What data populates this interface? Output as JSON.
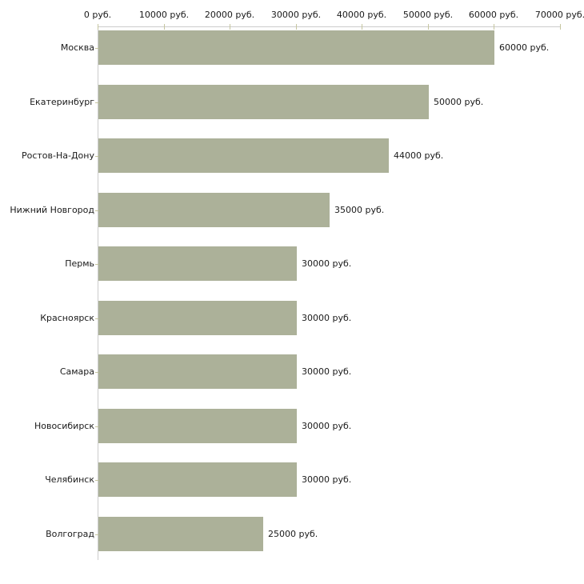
{
  "chart_data": {
    "type": "bar",
    "orientation": "horizontal",
    "title": "",
    "xlabel": "",
    "ylabel": "",
    "categories": [
      "Москва",
      "Екатеринбург",
      "Ростов-На-Дону",
      "Нижний Новгород",
      "Пермь",
      "Красноярск",
      "Самара",
      "Новосибирск",
      "Челябинск",
      "Волгоград"
    ],
    "values": [
      60000,
      50000,
      44000,
      35000,
      30000,
      30000,
      30000,
      30000,
      30000,
      25000
    ],
    "value_labels": [
      "60000 руб.",
      "50000 руб.",
      "44000 руб.",
      "35000 руб.",
      "30000 руб.",
      "30000 руб.",
      "30000 руб.",
      "30000 руб.",
      "30000 руб.",
      "25000 руб."
    ],
    "x_axis": {
      "min": 0,
      "max": 70000,
      "tick_values": [
        0,
        10000,
        20000,
        30000,
        40000,
        50000,
        60000,
        70000
      ],
      "tick_labels": [
        "0 руб.",
        "10000 руб.",
        "20000 руб.",
        "30000 руб.",
        "40000 руб.",
        "50000 руб.",
        "60000 руб.",
        "70000 руб."
      ]
    },
    "grid": false,
    "legend": false,
    "colors": {
      "bar": "#acb199",
      "axis": "#cccccc",
      "tick": "#c6c6a0",
      "text": "#1a1a1a",
      "background": "#ffffff"
    }
  }
}
